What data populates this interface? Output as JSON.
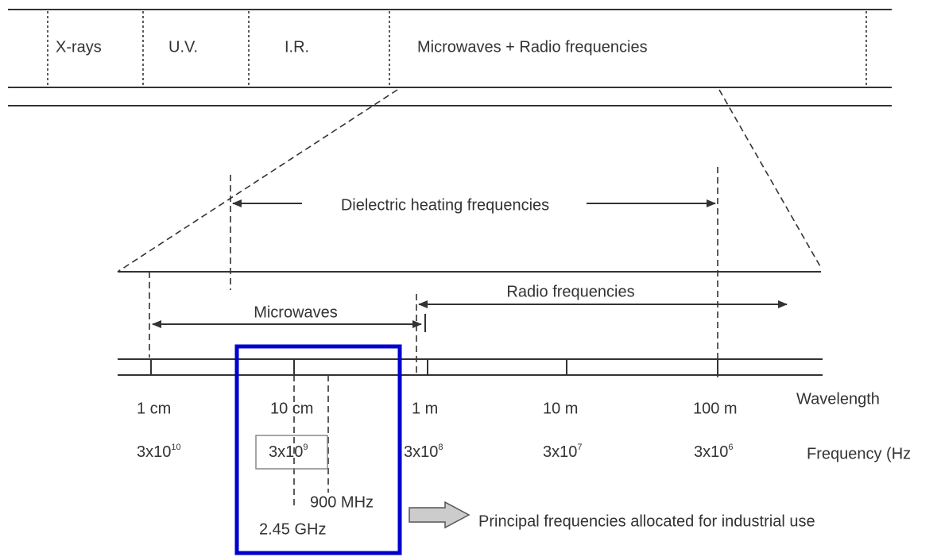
{
  "spectrum": {
    "bands": [
      "X-rays",
      "U.V.",
      "I.R.",
      "Microwaves + Radio frequencies"
    ]
  },
  "ranges": {
    "dielectric": "Dielectric heating frequencies",
    "microwaves": "Microwaves",
    "radio": "Radio frequencies"
  },
  "scale": {
    "wavelength_title": "Wavelength",
    "frequency_title": "Frequency (Hz",
    "wavelengths": [
      "1 cm",
      "10 cm",
      "1 m",
      "10 m",
      "100 m"
    ],
    "frequencies": [
      {
        "base": "3x10",
        "exp": "10"
      },
      {
        "base": "3x10",
        "exp": "9"
      },
      {
        "base": "3x10",
        "exp": "8"
      },
      {
        "base": "3x10",
        "exp": "7"
      },
      {
        "base": "3x10",
        "exp": "6"
      }
    ]
  },
  "industrial": {
    "f1": "900 MHz",
    "f2": "2.45 GHz",
    "note": "Principal frequencies allocated for industrial use"
  }
}
